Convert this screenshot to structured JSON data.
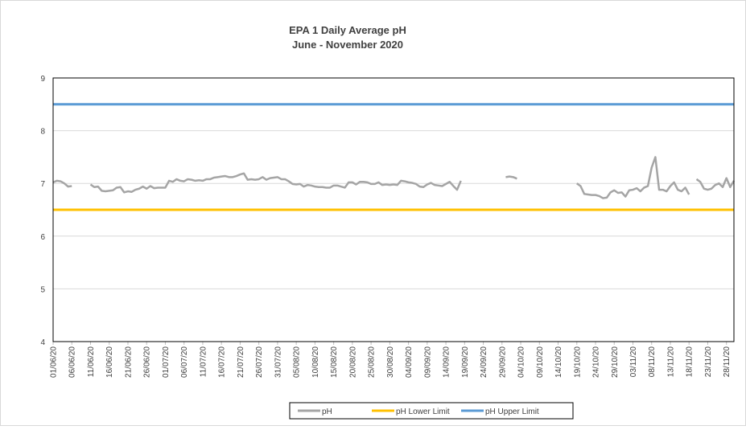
{
  "chart_data": {
    "type": "line",
    "title": "EPA 1 Daily Average pH",
    "subtitle": "June - November 2020",
    "categories": [
      "01/06/20",
      null,
      null,
      null,
      null,
      "06/06/20",
      null,
      null,
      null,
      null,
      "11/06/20",
      null,
      null,
      null,
      null,
      "16/06/20",
      null,
      null,
      null,
      null,
      "21/06/20",
      null,
      null,
      null,
      null,
      "26/06/20",
      null,
      null,
      null,
      null,
      "01/07/20",
      null,
      null,
      null,
      null,
      "06/07/20",
      null,
      null,
      null,
      null,
      "11/07/20",
      null,
      null,
      null,
      null,
      "16/07/20",
      null,
      null,
      null,
      null,
      "21/07/20",
      null,
      null,
      null,
      null,
      "26/07/20",
      null,
      null,
      null,
      null,
      "31/07/20",
      null,
      null,
      null,
      null,
      "05/08/20",
      null,
      null,
      null,
      null,
      "10/08/20",
      null,
      null,
      null,
      null,
      "15/08/20",
      null,
      null,
      null,
      null,
      "20/08/20",
      null,
      null,
      null,
      null,
      "25/08/20",
      null,
      null,
      null,
      null,
      "30/08/20",
      null,
      null,
      null,
      null,
      "04/09/20",
      null,
      null,
      null,
      null,
      "09/09/20",
      null,
      null,
      null,
      null,
      "14/09/20",
      null,
      null,
      null,
      null,
      "19/09/20",
      null,
      null,
      null,
      null,
      "24/09/20",
      null,
      null,
      null,
      null,
      "29/09/20",
      null,
      null,
      null,
      null,
      "04/10/20",
      null,
      null,
      null,
      null,
      "09/10/20",
      null,
      null,
      null,
      null,
      "14/10/20",
      null,
      null,
      null,
      null,
      "19/10/20",
      null,
      null,
      null,
      null,
      "24/10/20",
      null,
      null,
      null,
      null,
      "29/10/20",
      null,
      null,
      null,
      null,
      "03/11/20",
      null,
      null,
      null,
      null,
      "08/11/20",
      null,
      null,
      null,
      null,
      "13/11/20",
      null,
      null,
      null,
      null,
      "18/11/20",
      null,
      null,
      null,
      null,
      "23/11/20",
      null,
      null,
      null,
      null,
      "28/11/20",
      null,
      null
    ],
    "series": [
      {
        "name": "pH",
        "color": "#a5a5a5",
        "values": [
          7.02,
          7.05,
          7.04,
          7.0,
          6.94,
          6.95,
          null,
          null,
          null,
          null,
          6.98,
          6.93,
          6.94,
          6.86,
          6.85,
          6.86,
          6.87,
          6.92,
          6.93,
          6.83,
          6.85,
          6.84,
          6.88,
          6.9,
          6.94,
          6.9,
          6.95,
          6.91,
          6.92,
          6.92,
          6.92,
          7.05,
          7.03,
          7.08,
          7.05,
          7.04,
          7.08,
          7.07,
          7.05,
          7.06,
          7.05,
          7.08,
          7.08,
          7.11,
          7.12,
          7.13,
          7.14,
          7.12,
          7.12,
          7.14,
          7.17,
          7.19,
          7.07,
          7.08,
          7.07,
          7.08,
          7.12,
          7.07,
          7.1,
          7.11,
          7.12,
          7.08,
          7.08,
          7.04,
          6.99,
          6.98,
          6.99,
          6.94,
          6.97,
          6.96,
          6.94,
          6.93,
          6.93,
          6.92,
          6.92,
          6.96,
          6.96,
          6.94,
          6.92,
          7.02,
          7.02,
          6.98,
          7.03,
          7.03,
          7.02,
          6.99,
          6.99,
          7.02,
          6.97,
          6.98,
          6.97,
          6.98,
          6.97,
          7.05,
          7.04,
          7.02,
          7.01,
          6.99,
          6.94,
          6.93,
          6.98,
          7.01,
          6.97,
          6.96,
          6.95,
          6.99,
          7.03,
          6.95,
          6.88,
          7.05,
          null,
          null,
          null,
          null,
          null,
          null,
          null,
          null,
          null,
          null,
          null,
          7.12,
          7.13,
          7.12,
          7.09,
          null,
          null,
          null,
          null,
          null,
          null,
          null,
          null,
          null,
          null,
          null,
          null,
          null,
          null,
          null,
          7.0,
          6.95,
          6.8,
          6.79,
          6.78,
          6.78,
          6.76,
          6.72,
          6.73,
          6.83,
          6.87,
          6.82,
          6.83,
          6.75,
          6.87,
          6.88,
          6.91,
          6.85,
          6.92,
          6.95,
          7.3,
          7.5,
          6.88,
          6.88,
          6.85,
          6.95,
          7.02,
          6.88,
          6.85,
          6.92,
          6.79,
          null,
          7.08,
          7.03,
          6.9,
          6.88,
          6.9,
          6.97,
          7.0,
          6.93,
          7.1,
          6.93,
          7.05
        ]
      },
      {
        "name": "pH Lower Limit",
        "color": "#ffc000",
        "values": [
          6.5,
          6.5,
          6.5,
          6.5,
          6.5,
          6.5,
          6.5,
          6.5,
          6.5,
          6.5,
          6.5,
          6.5,
          6.5,
          6.5,
          6.5,
          6.5,
          6.5,
          6.5,
          6.5,
          6.5,
          6.5,
          6.5,
          6.5,
          6.5,
          6.5,
          6.5,
          6.5,
          6.5,
          6.5,
          6.5,
          6.5,
          6.5,
          6.5,
          6.5,
          6.5,
          6.5,
          6.5,
          6.5,
          6.5,
          6.5,
          6.5,
          6.5,
          6.5,
          6.5,
          6.5,
          6.5,
          6.5,
          6.5,
          6.5,
          6.5,
          6.5,
          6.5,
          6.5,
          6.5,
          6.5,
          6.5,
          6.5,
          6.5,
          6.5,
          6.5,
          6.5,
          6.5,
          6.5,
          6.5,
          6.5,
          6.5,
          6.5,
          6.5,
          6.5,
          6.5,
          6.5,
          6.5,
          6.5,
          6.5,
          6.5,
          6.5,
          6.5,
          6.5,
          6.5,
          6.5,
          6.5,
          6.5,
          6.5,
          6.5,
          6.5,
          6.5,
          6.5,
          6.5,
          6.5,
          6.5,
          6.5,
          6.5,
          6.5,
          6.5,
          6.5,
          6.5,
          6.5,
          6.5,
          6.5,
          6.5,
          6.5,
          6.5,
          6.5,
          6.5,
          6.5,
          6.5,
          6.5,
          6.5,
          6.5,
          6.5,
          6.5,
          6.5,
          6.5,
          6.5,
          6.5,
          6.5,
          6.5,
          6.5,
          6.5,
          6.5,
          6.5,
          6.5,
          6.5,
          6.5,
          6.5,
          6.5,
          6.5,
          6.5,
          6.5,
          6.5,
          6.5,
          6.5,
          6.5,
          6.5,
          6.5,
          6.5,
          6.5,
          6.5,
          6.5,
          6.5,
          6.5,
          6.5,
          6.5,
          6.5,
          6.5,
          6.5,
          6.5,
          6.5,
          6.5,
          6.5,
          6.5,
          6.5,
          6.5,
          6.5,
          6.5,
          6.5,
          6.5,
          6.5,
          6.5,
          6.5,
          6.5,
          6.5,
          6.5,
          6.5,
          6.5,
          6.5,
          6.5,
          6.5,
          6.5,
          6.5,
          6.5,
          6.5,
          6.5,
          6.5,
          6.5,
          6.5,
          6.5,
          6.5,
          6.5,
          6.5,
          6.5,
          6.5,
          6.5
        ]
      },
      {
        "name": "pH Upper Limit",
        "color": "#5b9bd5",
        "values": [
          8.5,
          8.5,
          8.5,
          8.5,
          8.5,
          8.5,
          8.5,
          8.5,
          8.5,
          8.5,
          8.5,
          8.5,
          8.5,
          8.5,
          8.5,
          8.5,
          8.5,
          8.5,
          8.5,
          8.5,
          8.5,
          8.5,
          8.5,
          8.5,
          8.5,
          8.5,
          8.5,
          8.5,
          8.5,
          8.5,
          8.5,
          8.5,
          8.5,
          8.5,
          8.5,
          8.5,
          8.5,
          8.5,
          8.5,
          8.5,
          8.5,
          8.5,
          8.5,
          8.5,
          8.5,
          8.5,
          8.5,
          8.5,
          8.5,
          8.5,
          8.5,
          8.5,
          8.5,
          8.5,
          8.5,
          8.5,
          8.5,
          8.5,
          8.5,
          8.5,
          8.5,
          8.5,
          8.5,
          8.5,
          8.5,
          8.5,
          8.5,
          8.5,
          8.5,
          8.5,
          8.5,
          8.5,
          8.5,
          8.5,
          8.5,
          8.5,
          8.5,
          8.5,
          8.5,
          8.5,
          8.5,
          8.5,
          8.5,
          8.5,
          8.5,
          8.5,
          8.5,
          8.5,
          8.5,
          8.5,
          8.5,
          8.5,
          8.5,
          8.5,
          8.5,
          8.5,
          8.5,
          8.5,
          8.5,
          8.5,
          8.5,
          8.5,
          8.5,
          8.5,
          8.5,
          8.5,
          8.5,
          8.5,
          8.5,
          8.5,
          8.5,
          8.5,
          8.5,
          8.5,
          8.5,
          8.5,
          8.5,
          8.5,
          8.5,
          8.5,
          8.5,
          8.5,
          8.5,
          8.5,
          8.5,
          8.5,
          8.5,
          8.5,
          8.5,
          8.5,
          8.5,
          8.5,
          8.5,
          8.5,
          8.5,
          8.5,
          8.5,
          8.5,
          8.5,
          8.5,
          8.5,
          8.5,
          8.5,
          8.5,
          8.5,
          8.5,
          8.5,
          8.5,
          8.5,
          8.5,
          8.5,
          8.5,
          8.5,
          8.5,
          8.5,
          8.5,
          8.5,
          8.5,
          8.5,
          8.5,
          8.5,
          8.5,
          8.5,
          8.5,
          8.5,
          8.5,
          8.5,
          8.5,
          8.5,
          8.5,
          8.5,
          8.5,
          8.5,
          8.5,
          8.5,
          8.5,
          8.5,
          8.5,
          8.5,
          8.5,
          8.5,
          8.5,
          8.5
        ]
      }
    ],
    "ylim": [
      4,
      9
    ],
    "yticks": [
      4,
      5,
      6,
      7,
      8,
      9
    ],
    "grid": true,
    "legend": "bottom"
  }
}
